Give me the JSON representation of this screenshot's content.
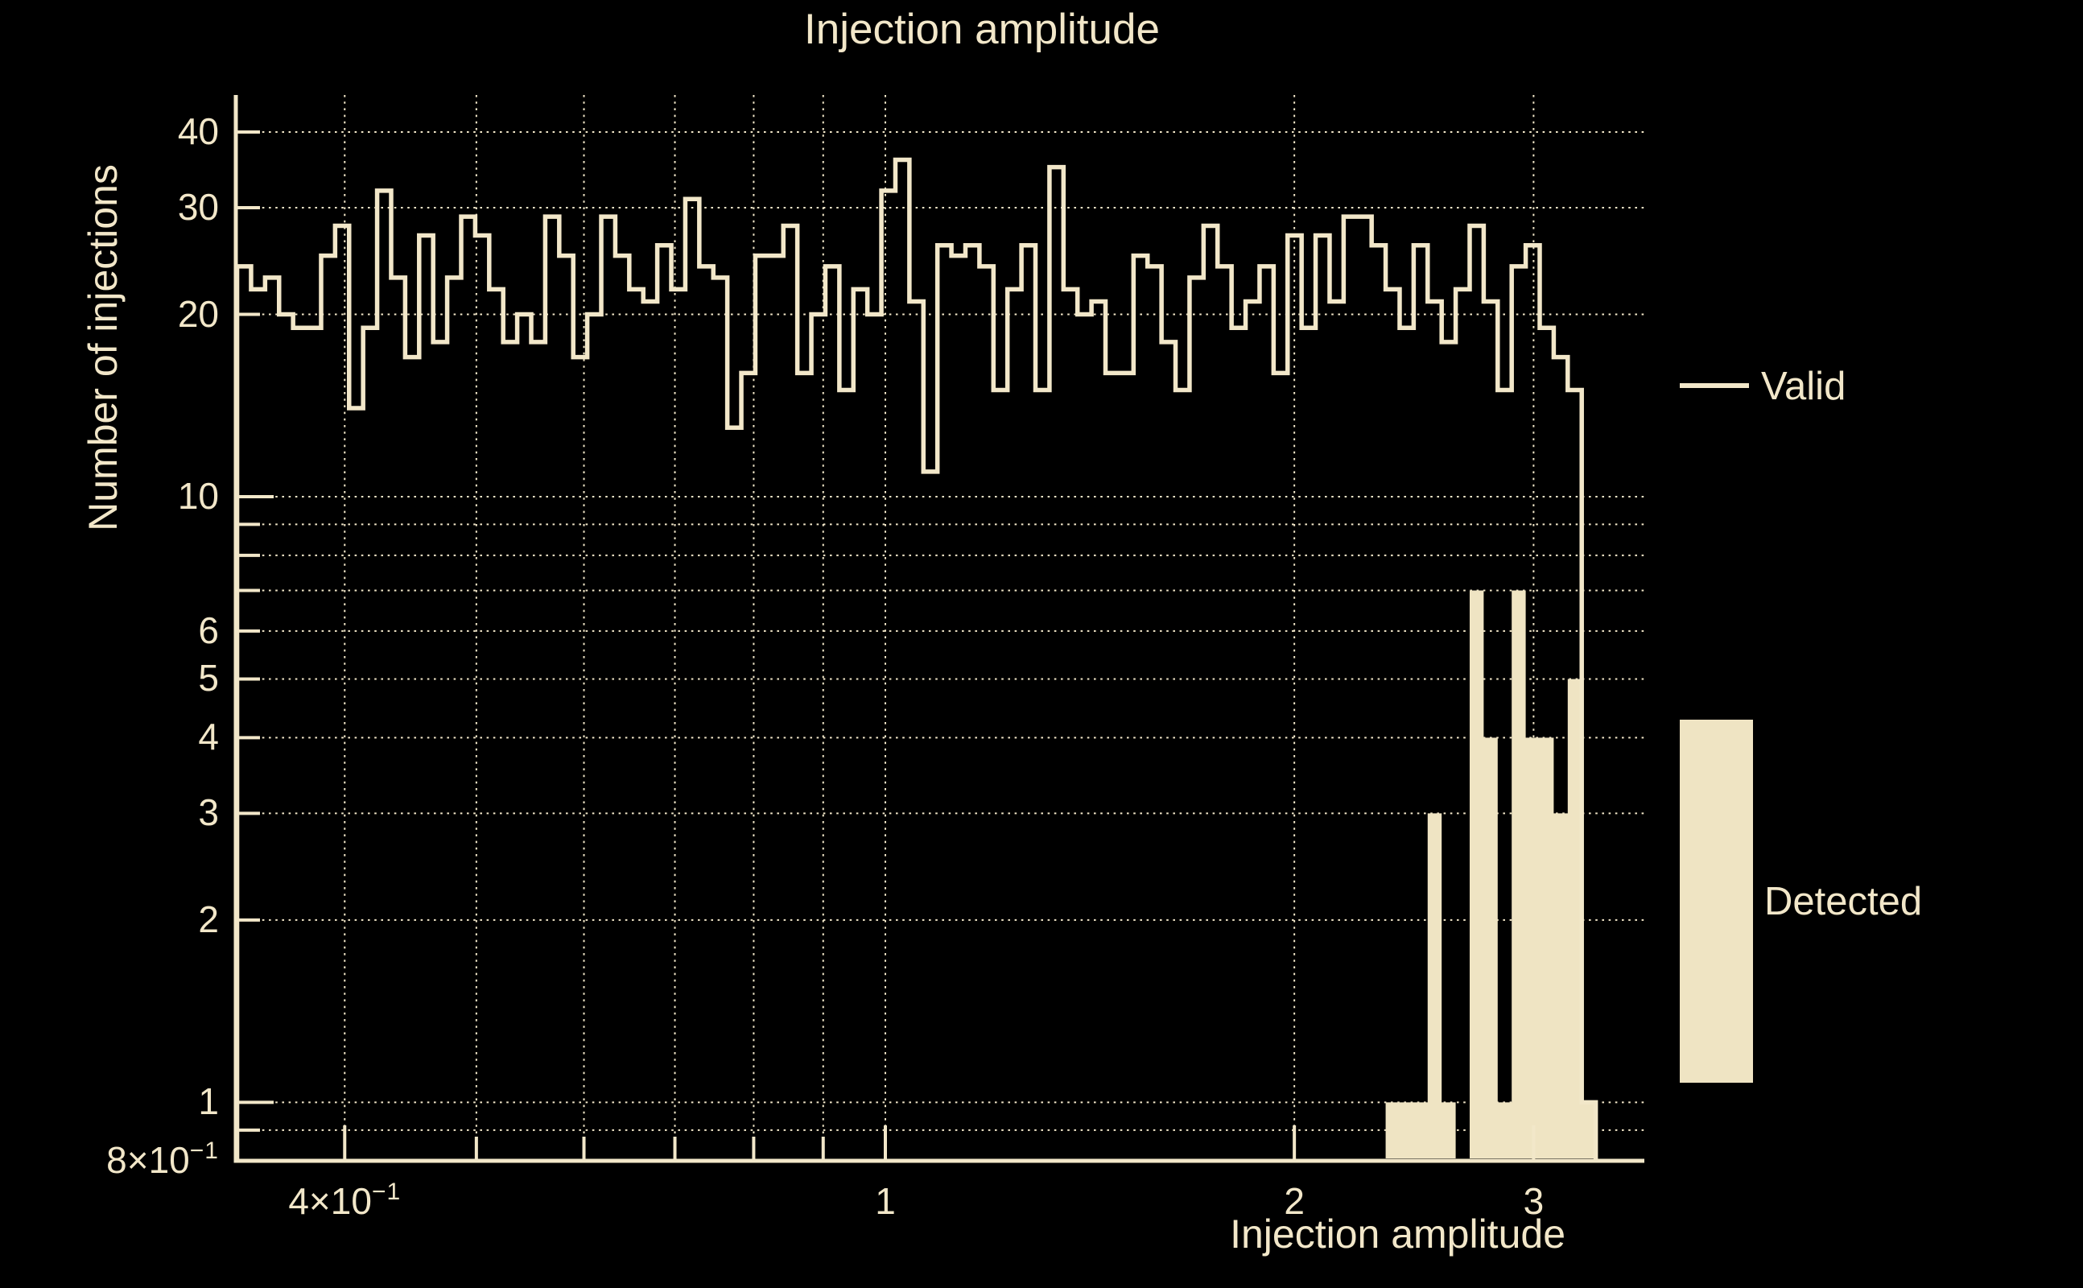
{
  "title": "Injection amplitude",
  "colors": {
    "background": "#000000",
    "foreground": "#f2e7c9",
    "fill": "#efe4c3"
  },
  "axes": {
    "x": {
      "title": "Injection amplitude",
      "scale": "log",
      "range": [
        0.3333,
        3.62
      ],
      "major_ticks": [
        {
          "label": "4×10",
          "exponent": "−1",
          "value": 0.4
        },
        {
          "label": "1",
          "value": 1
        },
        {
          "label": "2",
          "value": 2
        },
        {
          "label": "3",
          "value": 3
        }
      ],
      "grid_values": [
        0.4,
        0.5,
        0.6,
        0.7,
        0.8,
        0.9,
        1,
        2,
        3
      ]
    },
    "y": {
      "title": "Number of injections",
      "scale": "log",
      "range": [
        0.8,
        46
      ],
      "major_ticks": [
        {
          "label": "40",
          "value": 40
        },
        {
          "label": "30",
          "value": 30
        },
        {
          "label": "20",
          "value": 20
        },
        {
          "label": "10",
          "value": 10
        },
        {
          "label": "6",
          "value": 6
        },
        {
          "label": "5",
          "value": 5
        },
        {
          "label": "4",
          "value": 4
        },
        {
          "label": "3",
          "value": 3
        },
        {
          "label": "2",
          "value": 2
        },
        {
          "label": "1",
          "value": 1
        },
        {
          "label": "8×10",
          "exponent": "−1",
          "value": 0.8
        }
      ],
      "grid_values": [
        0.9,
        1,
        2,
        3,
        4,
        5,
        6,
        7,
        8,
        9,
        10,
        20,
        30,
        40
      ]
    }
  },
  "legend": {
    "entries": [
      {
        "label": "Valid",
        "swatch": "line"
      },
      {
        "label": "Detected",
        "swatch": "fill"
      }
    ]
  },
  "chart_data": {
    "type": "bar",
    "subtype": "histogram",
    "title": "Injection amplitude",
    "xlabel": "Injection amplitude",
    "ylabel": "Number of injections",
    "x_scale": "log",
    "y_scale": "log",
    "xlim": [
      0.3333,
      3.62
    ],
    "ylim": [
      0.8,
      46
    ],
    "grid": "on",
    "legend_position": "right",
    "bins": {
      "start": 0.3333,
      "end": 3.3333,
      "count": 97,
      "spacing": "log"
    },
    "series": [
      {
        "name": "Valid",
        "style": "step-outline",
        "values": [
          24,
          22,
          23,
          20,
          19,
          19,
          25,
          28,
          14,
          19,
          32,
          23,
          17,
          27,
          18,
          23,
          29,
          27,
          22,
          18,
          20,
          18,
          29,
          25,
          17,
          20,
          29,
          25,
          22,
          21,
          26,
          22,
          31,
          24,
          23,
          13,
          16,
          25,
          25,
          28,
          16,
          20,
          24,
          15,
          22,
          20,
          32,
          36,
          21,
          11,
          26,
          25,
          26,
          24,
          15,
          22,
          26,
          15,
          35,
          22,
          20,
          21,
          16,
          16,
          25,
          24,
          18,
          15,
          23,
          28,
          24,
          19,
          21,
          24,
          16,
          27,
          19,
          27,
          21,
          29,
          29,
          26,
          22,
          19,
          26,
          21,
          18,
          22,
          28,
          21,
          15,
          24,
          26,
          19,
          17,
          15,
          1
        ]
      },
      {
        "name": "Detected",
        "style": "filled-bar",
        "values": [
          0,
          0,
          0,
          0,
          0,
          0,
          0,
          0,
          0,
          0,
          0,
          0,
          0,
          0,
          0,
          0,
          0,
          0,
          0,
          0,
          0,
          0,
          0,
          0,
          0,
          0,
          0,
          0,
          0,
          0,
          0,
          0,
          0,
          0,
          0,
          0,
          0,
          0,
          0,
          0,
          0,
          0,
          0,
          0,
          0,
          0,
          0,
          0,
          0,
          0,
          0,
          0,
          0,
          0,
          0,
          0,
          0,
          0,
          0,
          0,
          0,
          0,
          0,
          0,
          0,
          0,
          0,
          0,
          0,
          0,
          0,
          0,
          0,
          0,
          0,
          0,
          0,
          0,
          0,
          0,
          0,
          0,
          1,
          1,
          1,
          3,
          1,
          0,
          7,
          4,
          1,
          7,
          4,
          4,
          3,
          5,
          1
        ]
      }
    ]
  }
}
